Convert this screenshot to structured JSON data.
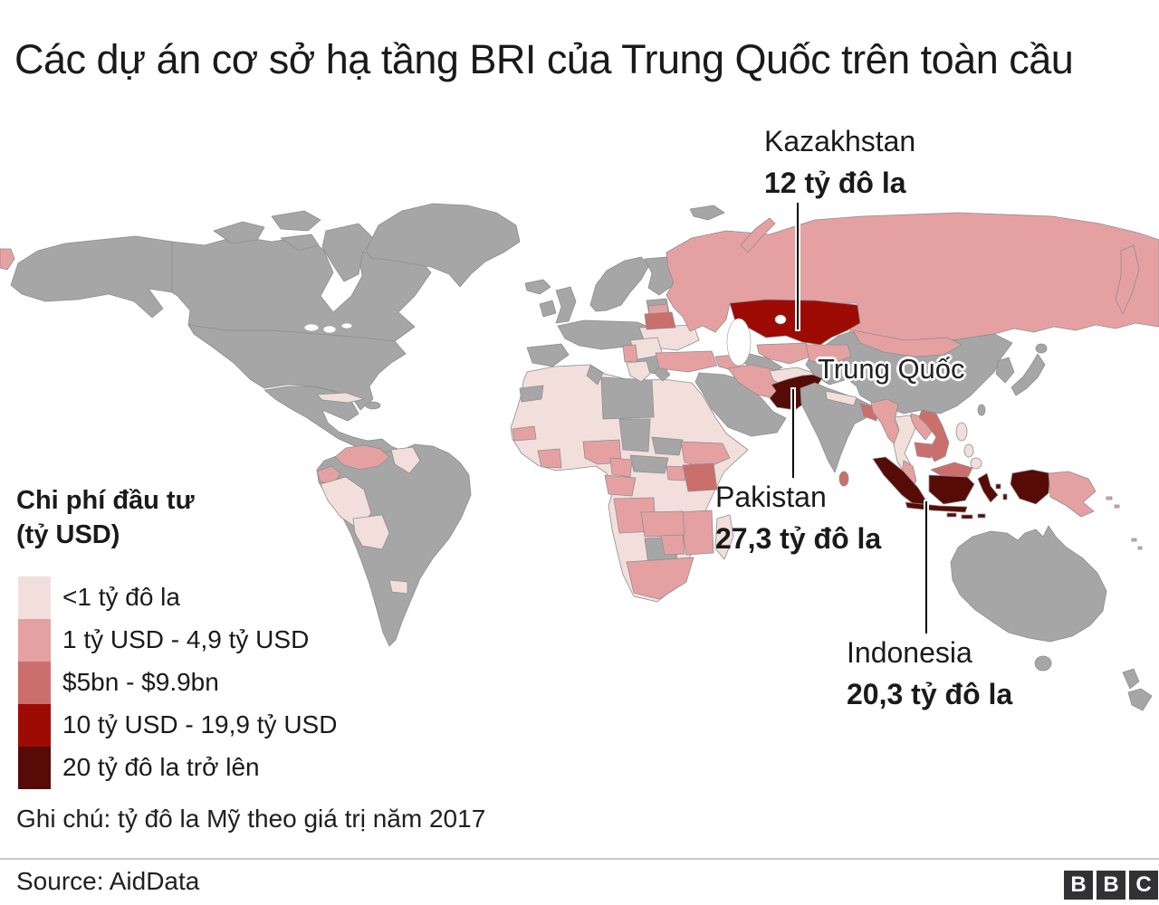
{
  "title": "Các dự án cơ sở hạ tầng BRI của Trung Quốc trên toàn cầu",
  "map_labels": {
    "china": "Trung Quốc"
  },
  "annotations": {
    "kazakhstan": {
      "name": "Kazakhstan",
      "value": "12 tỷ đô la"
    },
    "pakistan": {
      "name": "Pakistan",
      "value": "27,3 tỷ đô la"
    },
    "indonesia": {
      "name": "Indonesia",
      "value": "20,3 tỷ đô la"
    }
  },
  "legend": {
    "title_line1": "Chi phí đầu tư",
    "title_line2": "(tỷ USD)",
    "items": [
      {
        "label": "<1 tỷ đô la",
        "color": "#f2dfdc"
      },
      {
        "label": "1 tỷ USD - 4,9 tỷ USD",
        "color": "#e5a1a2"
      },
      {
        "label": "$5bn - $9.9bn",
        "color": "#cb6f6d"
      },
      {
        "label": "10 tỷ USD - 19,9 tỷ USD",
        "color": "#9e0b05"
      },
      {
        "label": "20 tỷ đô la trở lên",
        "color": "#560b06"
      }
    ],
    "no_data_color": "#a6a6a6"
  },
  "note": "Ghi chú: tỷ đô la Mỹ theo giá trị năm 2017",
  "footer": {
    "source": "Source: AidData",
    "logo_letters": [
      "B",
      "B",
      "C"
    ]
  },
  "map_data": {
    "type": "choropleth",
    "categories_shown_on_map": {
      "under_1bn": [
        "Cuba",
        "Guyana",
        "Suriname",
        "Peru",
        "Bolivia",
        "Uruguay",
        "Morocco",
        "Algeria",
        "Egypt",
        "Mauritania",
        "Mali",
        "Niger",
        "Sudan",
        "Somalia",
        "DR Congo",
        "Tanzania",
        "Namibia",
        "Guinea",
        "Ghana",
        "Madagascar",
        "Ukraine",
        "Romania",
        "Greece",
        "Afghanistan",
        "Nepal",
        "Thailand",
        "Philippines"
      ],
      "1_to_4_9bn": [
        "Russia",
        "Mongolia",
        "Venezuela",
        "Ecuador",
        "Senegal",
        "Ivory Coast",
        "Nigeria",
        "Cameroon",
        "Congo",
        "Ethiopia",
        "Uganda",
        "Angola",
        "Zambia",
        "Zimbabwe",
        "Mozambique",
        "South Africa",
        "Serbia",
        "Latvia",
        "Turkey",
        "Azerbaijan",
        "Uzbekistan",
        "Kyrgyzstan",
        "Tajikistan",
        "Iran",
        "Myanmar",
        "Laos",
        "Malaysia",
        "Papua New Guinea",
        "Fiji"
      ],
      "5_to_9_9bn": [
        "Belarus",
        "Kenya",
        "Bangladesh",
        "Sri Lanka",
        "Vietnam",
        "Cambodia"
      ],
      "10_to_19_9bn": [
        "Kazakhstan"
      ],
      "20bn_plus": [
        "Pakistan",
        "Indonesia"
      ]
    },
    "no_data_examples": [
      "United States",
      "Canada",
      "Greenland",
      "Mexico",
      "Colombia",
      "Brazil",
      "Argentina",
      "Western Europe",
      "Saudi Arabia",
      "China",
      "India",
      "Japan",
      "Australia",
      "New Zealand"
    ]
  }
}
